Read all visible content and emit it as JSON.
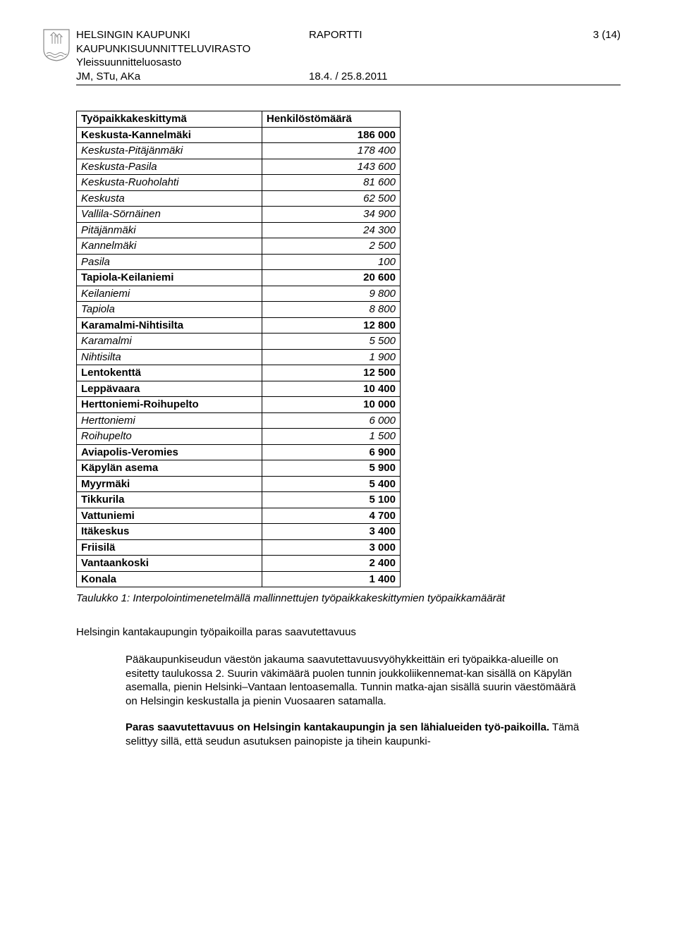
{
  "header": {
    "org_line1": "HELSINGIN KAUPUNKI",
    "org_line2": "KAUPUNKISUUNNITTELUVIRASTO",
    "dept": "Yleissuunnitteluosasto",
    "authors": "JM, STu, AKa",
    "doc_type": "RAPORTTI",
    "date": "18.4. / 25.8.2011",
    "page": "3 (14)"
  },
  "table": {
    "col1": "Työpaikkakeskittymä",
    "col2": "Henkilöstömäärä",
    "rows": [
      {
        "label": "Keskusta-Kannelmäki",
        "value": "186 000",
        "style": "bold"
      },
      {
        "label": "Keskusta-Pitäjänmäki",
        "value": "178 400",
        "style": "italic"
      },
      {
        "label": "Keskusta-Pasila",
        "value": "143 600",
        "style": "italic"
      },
      {
        "label": "Keskusta-Ruoholahti",
        "value": "81 600",
        "style": "italic"
      },
      {
        "label": "Keskusta",
        "value": "62 500",
        "style": "italic"
      },
      {
        "label": "Vallila-Sörnäinen",
        "value": "34 900",
        "style": "italic"
      },
      {
        "label": "Pitäjänmäki",
        "value": "24 300",
        "style": "italic"
      },
      {
        "label": "Kannelmäki",
        "value": "2 500",
        "style": "italic"
      },
      {
        "label": "Pasila",
        "value": "100",
        "style": "italic"
      },
      {
        "label": "Tapiola-Keilaniemi",
        "value": "20 600",
        "style": "bold"
      },
      {
        "label": "Keilaniemi",
        "value": "9 800",
        "style": "italic"
      },
      {
        "label": "Tapiola",
        "value": "8 800",
        "style": "italic"
      },
      {
        "label": "Karamalmi-Nihtisilta",
        "value": "12 800",
        "style": "bold"
      },
      {
        "label": "Karamalmi",
        "value": "5 500",
        "style": "italic"
      },
      {
        "label": "Nihtisilta",
        "value": "1 900",
        "style": "italic"
      },
      {
        "label": "Lentokenttä",
        "value": "12 500",
        "style": "bold"
      },
      {
        "label": "Leppävaara",
        "value": "10 400",
        "style": "bold"
      },
      {
        "label": "Herttoniemi-Roihupelto",
        "value": "10 000",
        "style": "bold"
      },
      {
        "label": "Herttoniemi",
        "value": "6 000",
        "style": "italic"
      },
      {
        "label": "Roihupelto",
        "value": "1 500",
        "style": "italic"
      },
      {
        "label": "Aviapolis-Veromies",
        "value": "6 900",
        "style": "bold"
      },
      {
        "label": "Käpylän asema",
        "value": "5 900",
        "style": "bold"
      },
      {
        "label": "Myyrmäki",
        "value": "5 400",
        "style": "bold"
      },
      {
        "label": "Tikkurila",
        "value": "5 100",
        "style": "bold"
      },
      {
        "label": "Vattuniemi",
        "value": "4 700",
        "style": "bold"
      },
      {
        "label": "Itäkeskus",
        "value": "3 400",
        "style": "bold"
      },
      {
        "label": "Friisilä",
        "value": "3 000",
        "style": "bold"
      },
      {
        "label": "Vantaankoski",
        "value": "2 400",
        "style": "bold"
      },
      {
        "label": "Konala",
        "value": "1 400",
        "style": "bold"
      }
    ]
  },
  "caption": "Taulukko 1: Interpolointimenetelmällä mallinnettujen työpaikkakeskittymien työpaikkamäärät",
  "subhead": "Helsingin kantakaupungin työpaikoilla paras saavutettavuus",
  "para1": "Pääkaupunkiseudun väestön jakauma saavutettavuusvyöhykkeittäin eri työpaikka-alueille on esitetty taulukossa 2. Suurin väkimäärä puolen tunnin joukkoliikennemat-kan sisällä on Käpylän asemalla, pienin Helsinki–Vantaan lentoasemalla. Tunnin matka-ajan sisällä suurin väestömäärä on Helsingin keskustalla ja pienin Vuosaaren satamalla.",
  "para2a": "Paras saavutettavuus on Helsingin kantakaupungin ja sen lähialueiden työ-paikoilla.",
  "para2b": " Tämä selittyy sillä, että seudun asutuksen painopiste ja tihein kaupunki-"
}
